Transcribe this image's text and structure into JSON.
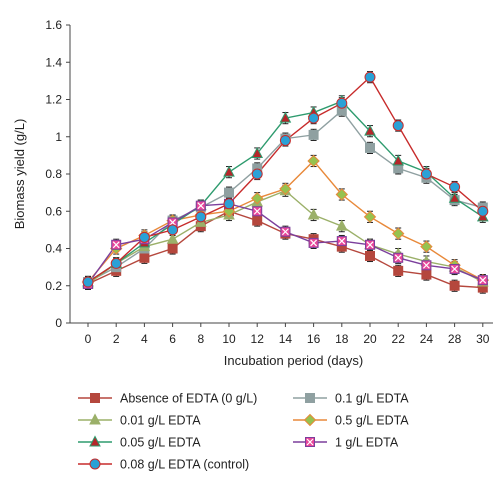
{
  "chart_data": {
    "type": "line",
    "xlabel": "Incubation period (days)",
    "ylabel": "Biomass yield (g/L)",
    "ylim": [
      0,
      1.6
    ],
    "yticks": [
      "0",
      "0.2",
      "0.4",
      "0.6",
      "0.8",
      "1",
      "1.2",
      "1.4",
      "1.6"
    ],
    "x": [
      "0",
      "2",
      "4",
      "6",
      "8",
      "10",
      "12",
      "14",
      "16",
      "18",
      "20",
      "22",
      "24",
      "28",
      "30"
    ],
    "grid": false,
    "legend_position": "bottom",
    "series": [
      {
        "name": "Absence of EDTA (0 g/L)",
        "color": "#b5473d",
        "marker": "square",
        "values": [
          0.21,
          0.28,
          0.35,
          0.4,
          0.52,
          0.6,
          0.55,
          0.48,
          0.45,
          0.41,
          0.36,
          0.28,
          0.26,
          0.2,
          0.19
        ]
      },
      {
        "name": "0.1 g/L EDTA",
        "color": "#8fa0a1",
        "marker": "square",
        "values": [
          0.22,
          0.3,
          0.4,
          0.55,
          0.62,
          0.7,
          0.83,
          0.99,
          1.01,
          1.14,
          0.94,
          0.83,
          0.78,
          0.66,
          0.62
        ]
      },
      {
        "name": "0.01 g/L EDTA",
        "color": "#9bb069",
        "marker": "triangle",
        "values": [
          0.21,
          0.32,
          0.41,
          0.45,
          0.54,
          0.58,
          0.65,
          0.71,
          0.58,
          0.52,
          0.42,
          0.37,
          0.33,
          0.3,
          0.22
        ]
      },
      {
        "name": "0.5 g/L EDTA",
        "color": "#e8893a",
        "marker": "diamond",
        "fill": "#96c24f",
        "values": [
          0.22,
          0.4,
          0.47,
          0.55,
          0.58,
          0.6,
          0.67,
          0.72,
          0.87,
          0.69,
          0.57,
          0.48,
          0.41,
          0.31,
          0.23
        ]
      },
      {
        "name": "0.05 g/L EDTA",
        "color": "#2e9b6e",
        "marker": "triangle",
        "fill": "#b5262a",
        "values": [
          0.22,
          0.32,
          0.43,
          0.53,
          0.63,
          0.81,
          0.91,
          1.1,
          1.13,
          1.19,
          1.03,
          0.87,
          0.81,
          0.67,
          0.57
        ]
      },
      {
        "name": "1 g/L EDTA",
        "color": "#7b3f9c",
        "marker": "xsquare",
        "fill": "#e8479a",
        "values": [
          0.21,
          0.42,
          0.45,
          0.54,
          0.63,
          0.64,
          0.6,
          0.49,
          0.43,
          0.44,
          0.42,
          0.35,
          0.31,
          0.29,
          0.23
        ]
      },
      {
        "name": "0.08 g/L EDTA (control)",
        "color": "#c72b2b",
        "marker": "circle",
        "fill": "#2aa1d6",
        "values": [
          0.22,
          0.32,
          0.46,
          0.5,
          0.57,
          0.64,
          0.8,
          0.98,
          1.1,
          1.18,
          1.32,
          1.06,
          0.8,
          0.73,
          0.6
        ]
      }
    ],
    "legend_order": [
      0,
      1,
      2,
      3,
      4,
      5,
      6
    ]
  }
}
